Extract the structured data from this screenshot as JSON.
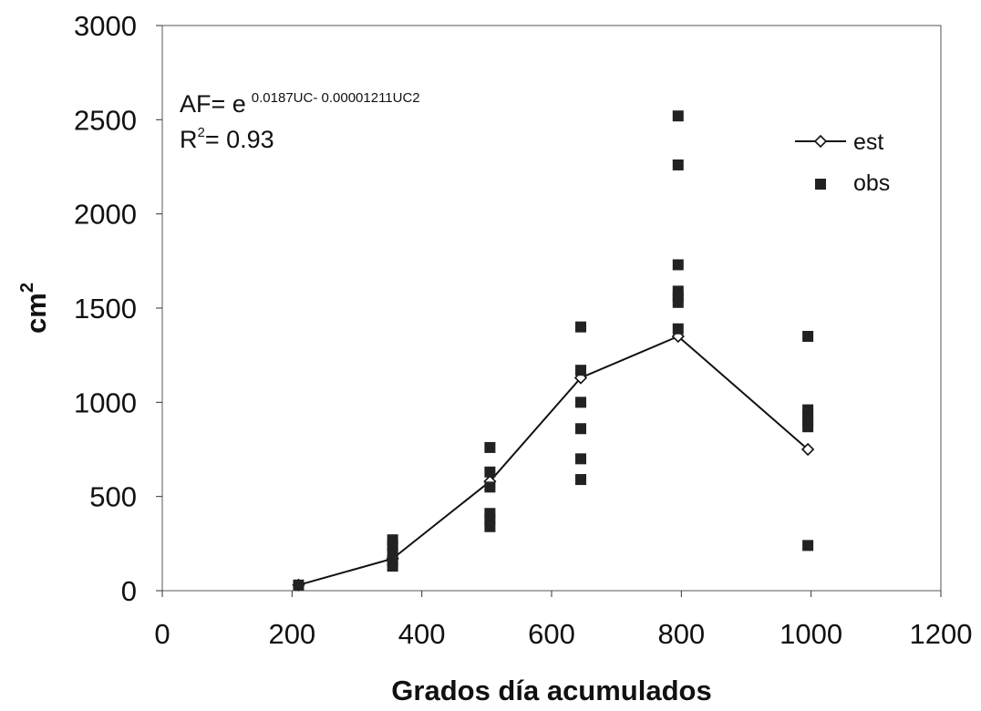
{
  "chart_data": {
    "type": "scatter",
    "xlabel": "Grados día acumulados",
    "ylabel": "cm",
    "ylabel_sup": "2",
    "xlim": [
      0,
      1200
    ],
    "ylim": [
      0,
      3000
    ],
    "x_ticks": [
      "0",
      "200",
      "400",
      "600",
      "800",
      "1000",
      "1200"
    ],
    "y_ticks": [
      "0",
      "500",
      "1000",
      "1500",
      "2000",
      "2500",
      "3000"
    ],
    "grid": false,
    "legend_position": "top-right",
    "annotation": {
      "equation_prefix": "AF= e",
      "equation_exponent": "0.0187UC- 0.00001211UC2",
      "r2_prefix": "R",
      "r2_sup": "2",
      "r2_value": "= 0.93"
    },
    "series": [
      {
        "name": "est",
        "type": "line",
        "marker": "diamond-open",
        "color": "#111111",
        "points": [
          {
            "x": 210,
            "y": 30
          },
          {
            "x": 355,
            "y": 170
          },
          {
            "x": 505,
            "y": 580
          },
          {
            "x": 645,
            "y": 1130
          },
          {
            "x": 795,
            "y": 1350
          },
          {
            "x": 995,
            "y": 750
          }
        ]
      },
      {
        "name": "obs",
        "type": "scatter",
        "marker": "square-filled",
        "color": "#222222",
        "points": [
          {
            "x": 210,
            "y": 30
          },
          {
            "x": 355,
            "y": 130
          },
          {
            "x": 355,
            "y": 160
          },
          {
            "x": 355,
            "y": 200
          },
          {
            "x": 355,
            "y": 240
          },
          {
            "x": 355,
            "y": 270
          },
          {
            "x": 505,
            "y": 340
          },
          {
            "x": 505,
            "y": 380
          },
          {
            "x": 505,
            "y": 410
          },
          {
            "x": 505,
            "y": 550
          },
          {
            "x": 505,
            "y": 630
          },
          {
            "x": 505,
            "y": 760
          },
          {
            "x": 645,
            "y": 590
          },
          {
            "x": 645,
            "y": 700
          },
          {
            "x": 645,
            "y": 860
          },
          {
            "x": 645,
            "y": 1000
          },
          {
            "x": 645,
            "y": 1170
          },
          {
            "x": 645,
            "y": 1400
          },
          {
            "x": 795,
            "y": 1390
          },
          {
            "x": 795,
            "y": 1530
          },
          {
            "x": 795,
            "y": 1560
          },
          {
            "x": 795,
            "y": 1590
          },
          {
            "x": 795,
            "y": 1730
          },
          {
            "x": 795,
            "y": 2260
          },
          {
            "x": 795,
            "y": 2520
          },
          {
            "x": 995,
            "y": 240
          },
          {
            "x": 995,
            "y": 870
          },
          {
            "x": 995,
            "y": 900
          },
          {
            "x": 995,
            "y": 930
          },
          {
            "x": 995,
            "y": 960
          },
          {
            "x": 995,
            "y": 1350
          }
        ]
      }
    ]
  }
}
